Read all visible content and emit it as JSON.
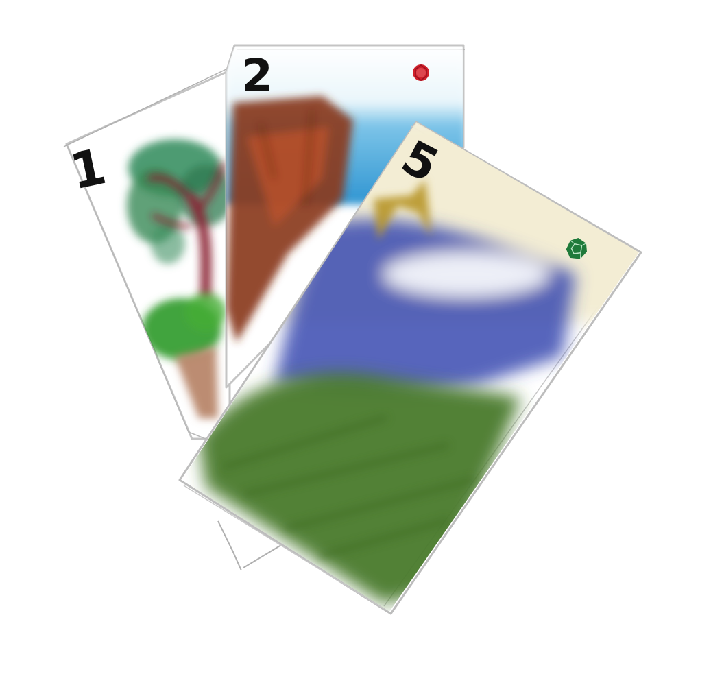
{
  "cards": [
    {
      "number": "1",
      "motif": "tree"
    },
    {
      "number": "2",
      "motif": "rock-cliff-and-sky"
    },
    {
      "number": "5",
      "motif": "sun-sky-water-grass"
    }
  ],
  "gems": [
    {
      "card": "2",
      "color": "#d0202a",
      "shape": "round-gem"
    },
    {
      "card": "5",
      "color": "#1f7a3a",
      "shape": "hexagonal-gem"
    }
  ],
  "colors": {
    "background": "#ffffff",
    "card_outline": "#b8b8b8",
    "tree_foliage": "#2f8a5a",
    "tree_trunk": "#8a2a2a",
    "bush": "#3a9a2a",
    "dirt": "#b88a6a",
    "rock": "#8a3a20",
    "rock_highlight": "#c8602a",
    "sky": "#3aa0d8",
    "sun": "#b8962a",
    "water": "#3a4ab0",
    "grass": "#4a7a2a",
    "sky_pale": "#f2ecd2"
  }
}
